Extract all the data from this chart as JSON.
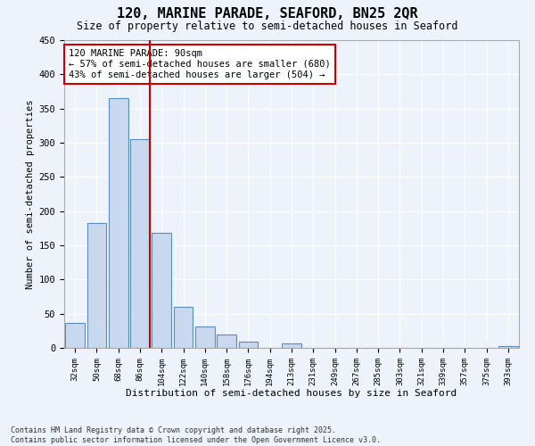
{
  "title_line1": "120, MARINE PARADE, SEAFORD, BN25 2QR",
  "title_line2": "Size of property relative to semi-detached houses in Seaford",
  "xlabel": "Distribution of semi-detached houses by size in Seaford",
  "ylabel": "Number of semi-detached properties",
  "bar_labels": [
    "32sqm",
    "50sqm",
    "68sqm",
    "86sqm",
    "104sqm",
    "122sqm",
    "140sqm",
    "158sqm",
    "176sqm",
    "194sqm",
    "213sqm",
    "231sqm",
    "249sqm",
    "267sqm",
    "285sqm",
    "303sqm",
    "321sqm",
    "339sqm",
    "357sqm",
    "375sqm",
    "393sqm"
  ],
  "bar_values": [
    37,
    183,
    365,
    305,
    168,
    60,
    31,
    20,
    9,
    0,
    7,
    0,
    0,
    0,
    0,
    0,
    0,
    0,
    0,
    0,
    3
  ],
  "bar_color": "#c8d8ee",
  "bar_edge_color": "#5b8db8",
  "vline_bar_index": 3,
  "property_size": "90sqm",
  "pct_smaller": 57,
  "n_smaller": 680,
  "pct_larger": 43,
  "n_larger": 504,
  "vline_color": "#cc0000",
  "annotation_box_edge_color": "#cc0000",
  "ylim": [
    0,
    450
  ],
  "yticks": [
    0,
    50,
    100,
    150,
    200,
    250,
    300,
    350,
    400,
    450
  ],
  "footer_line1": "Contains HM Land Registry data © Crown copyright and database right 2025.",
  "footer_line2": "Contains public sector information licensed under the Open Government Licence v3.0.",
  "bg_color": "#eef2fb",
  "grid_color": "#ffffff"
}
